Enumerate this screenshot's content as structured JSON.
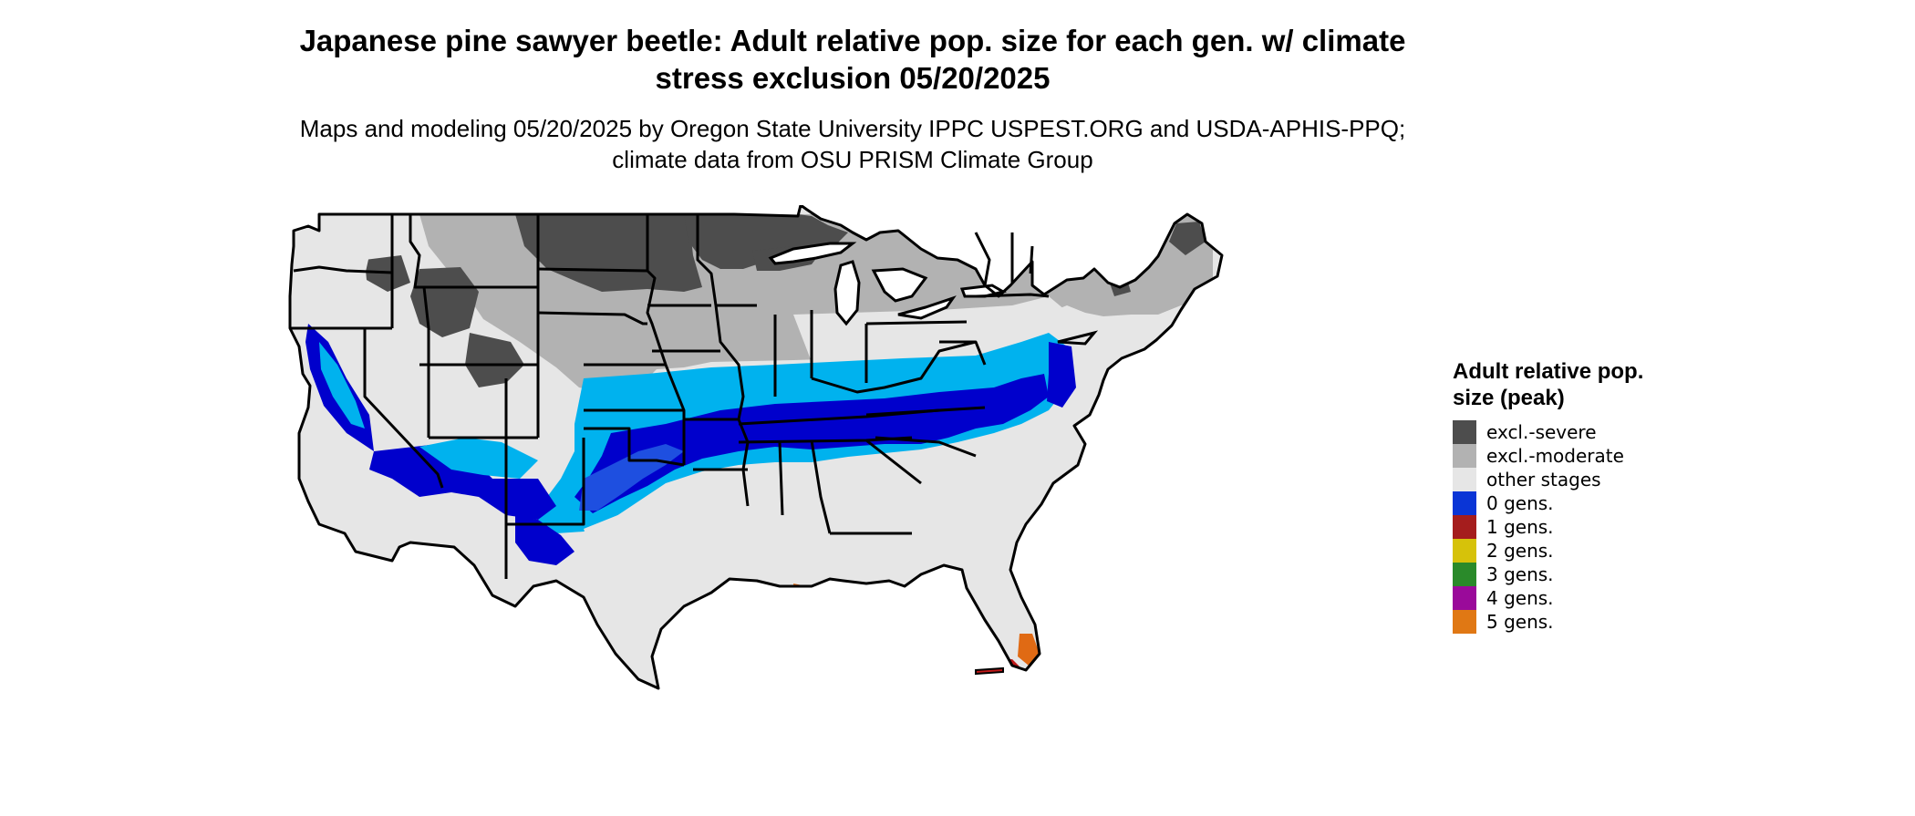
{
  "title": "Japanese pine sawyer beetle: Adult relative pop. size for each gen. w/ climate stress exclusion 05/20/2025",
  "subtitle": "Maps and modeling 05/20/2025 by Oregon State University IPPC USPEST.ORG and USDA-APHIS-PPQ; climate data from OSU PRISM Climate Group",
  "legend": {
    "title": "Adult relative pop. size (peak)",
    "items": [
      {
        "label": "excl.-severe",
        "color": "#4d4d4d"
      },
      {
        "label": "excl.-moderate",
        "color": "#b2b2b2"
      },
      {
        "label": "other stages",
        "color": "#e6e6e6"
      },
      {
        "label": "0 gens.",
        "color": "#0a35d6"
      },
      {
        "label": "1 gens.",
        "color": "#a51d1d"
      },
      {
        "label": "2 gens.",
        "color": "#d6c20a"
      },
      {
        "label": "3 gens.",
        "color": "#2a8a2a"
      },
      {
        "label": "4 gens.",
        "color": "#9a0a9a"
      },
      {
        "label": "5 gens.",
        "color": "#e07814"
      }
    ]
  },
  "map": {
    "colors": {
      "severe": "#4d4d4d",
      "moderate": "#b2b2b2",
      "other": "#e6e6e6",
      "dark_blue": "#0000cc",
      "mid_blue": "#1e4fe0",
      "light_blue": "#00b2ee",
      "orange": "#e06a14",
      "red": "#c01818",
      "border": "#000000",
      "water": "#ffffff"
    }
  }
}
